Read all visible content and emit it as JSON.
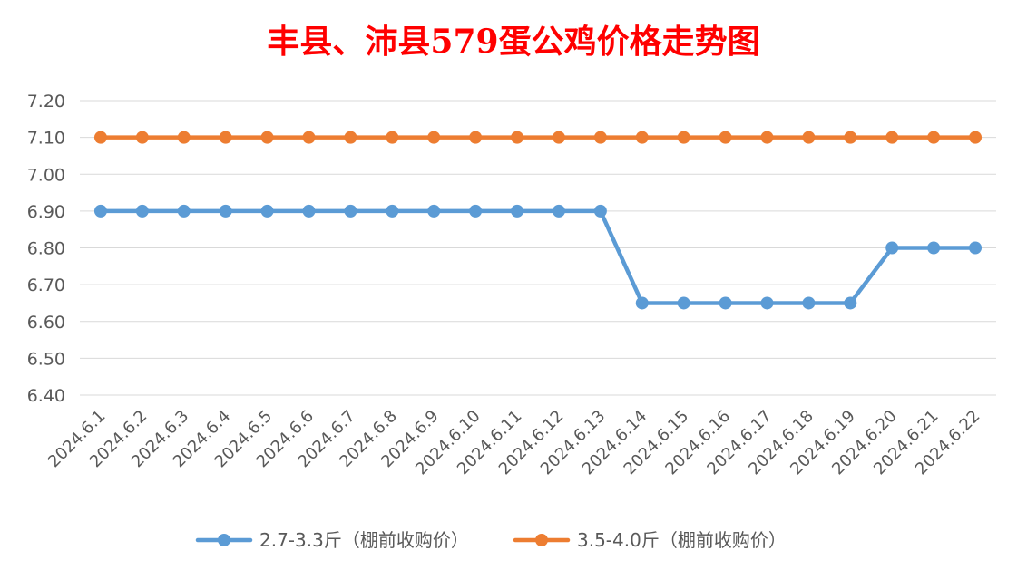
{
  "chart_data": {
    "type": "line",
    "title": "丰县、沛县579蛋公鸡价格走势图",
    "xlabel": "",
    "ylabel": "",
    "categories": [
      "2024.6.1",
      "2024.6.2",
      "2024.6.3",
      "2024.6.4",
      "2024.6.5",
      "2024.6.6",
      "2024.6.7",
      "2024.6.8",
      "2024.6.9",
      "2024.6.10",
      "2024.6.11",
      "2024.6.12",
      "2024.6.13",
      "2024.6.14",
      "2024.6.15",
      "2024.6.16",
      "2024.6.17",
      "2024.6.18",
      "2024.6.19",
      "2024.6.20",
      "2024.6.21",
      "2024.6.22"
    ],
    "ylim": [
      6.4,
      7.2
    ],
    "yticks": [
      "7.20",
      "7.10",
      "7.00",
      "6.90",
      "6.80",
      "6.70",
      "6.60",
      "6.50",
      "6.40"
    ],
    "grid": true,
    "legend_position": "bottom",
    "series": [
      {
        "name": "2.7-3.3斤（棚前收购价）",
        "color": "#5b9bd5",
        "values": [
          6.9,
          6.9,
          6.9,
          6.9,
          6.9,
          6.9,
          6.9,
          6.9,
          6.9,
          6.9,
          6.9,
          6.9,
          6.9,
          6.65,
          6.65,
          6.65,
          6.65,
          6.65,
          6.65,
          6.8,
          6.8,
          6.8
        ]
      },
      {
        "name": "3.5-4.0斤（棚前收购价）",
        "color": "#ed7d31",
        "values": [
          7.1,
          7.1,
          7.1,
          7.1,
          7.1,
          7.1,
          7.1,
          7.1,
          7.1,
          7.1,
          7.1,
          7.1,
          7.1,
          7.1,
          7.1,
          7.1,
          7.1,
          7.1,
          7.1,
          7.1,
          7.1,
          7.1
        ]
      }
    ]
  }
}
